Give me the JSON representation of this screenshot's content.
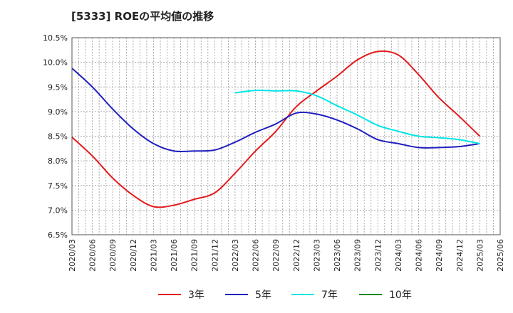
{
  "chart_data": {
    "type": "line",
    "title": "[5333]  ROEの平均値の推移",
    "xlabel": "",
    "ylabel": "",
    "ylim": [
      6.5,
      10.5
    ],
    "y_ticks": [
      "6.5%",
      "7.0%",
      "7.5%",
      "8.0%",
      "8.5%",
      "9.0%",
      "9.5%",
      "10.0%",
      "10.5%"
    ],
    "categories": [
      "2020/03",
      "2020/06",
      "2020/09",
      "2020/12",
      "2021/03",
      "2021/06",
      "2021/09",
      "2021/12",
      "2022/03",
      "2022/06",
      "2022/09",
      "2022/12",
      "2023/03",
      "2023/06",
      "2023/09",
      "2023/12",
      "2024/03",
      "2024/06",
      "2024/09",
      "2024/12",
      "2025/03",
      "2025/06"
    ],
    "grid": true,
    "legend_position": "bottom",
    "series": [
      {
        "name": "3年",
        "color": "#e31a1c",
        "values": [
          8.48,
          8.1,
          7.65,
          7.3,
          7.07,
          7.1,
          7.22,
          7.35,
          7.75,
          8.2,
          8.6,
          9.1,
          9.42,
          9.72,
          10.05,
          10.22,
          10.15,
          9.75,
          9.28,
          8.9,
          8.5,
          null
        ]
      },
      {
        "name": "5年",
        "color": "#1f1fbf",
        "values": [
          9.88,
          9.5,
          9.05,
          8.65,
          8.35,
          8.2,
          8.2,
          8.22,
          8.38,
          8.58,
          8.75,
          8.97,
          8.95,
          8.83,
          8.65,
          8.43,
          8.35,
          8.27,
          8.27,
          8.29,
          8.35,
          null
        ]
      },
      {
        "name": "7年",
        "color": "#00e5e5",
        "values": [
          null,
          null,
          null,
          null,
          null,
          null,
          null,
          null,
          9.38,
          9.43,
          9.42,
          9.42,
          9.32,
          9.12,
          8.93,
          8.72,
          8.6,
          8.5,
          8.47,
          8.43,
          8.35,
          null
        ]
      },
      {
        "name": "10年",
        "color": "#1a8a1a",
        "values": [
          null,
          null,
          null,
          null,
          null,
          null,
          null,
          null,
          null,
          null,
          null,
          null,
          null,
          null,
          null,
          null,
          null,
          null,
          null,
          null,
          null,
          null
        ]
      }
    ]
  }
}
